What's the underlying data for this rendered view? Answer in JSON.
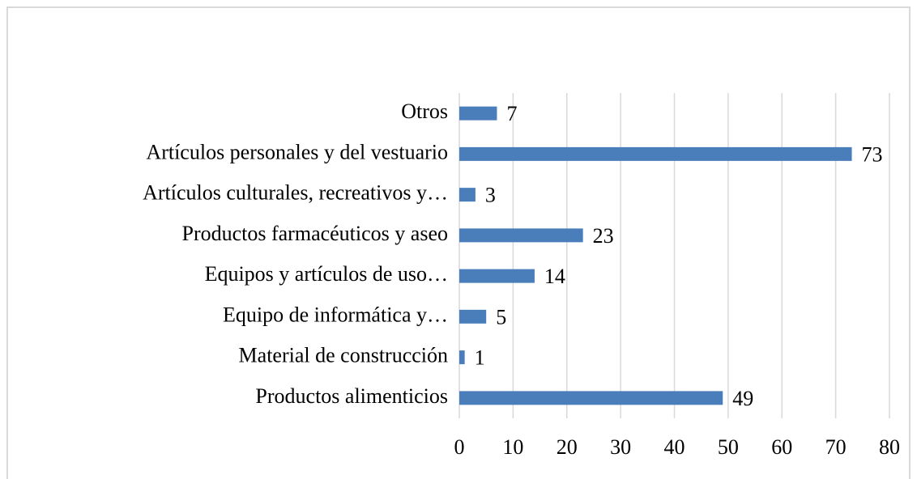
{
  "chart_data": {
    "type": "bar",
    "orientation": "horizontal",
    "categories": [
      "Otros",
      "Artículos personales y del vestuario",
      "Artículos culturales, recreativos y…",
      "Productos farmacéuticos y aseo",
      "Equipos y artículos de uso…",
      "Equipo de informática y…",
      "Material de construcción",
      "Productos alimenticios"
    ],
    "values": [
      7,
      73,
      3,
      23,
      14,
      5,
      1,
      49
    ],
    "color": "#4a7ebb",
    "xlim": [
      0,
      80
    ],
    "xticks": [
      0,
      10,
      20,
      30,
      40,
      50,
      60,
      70,
      80
    ],
    "grid": true
  }
}
